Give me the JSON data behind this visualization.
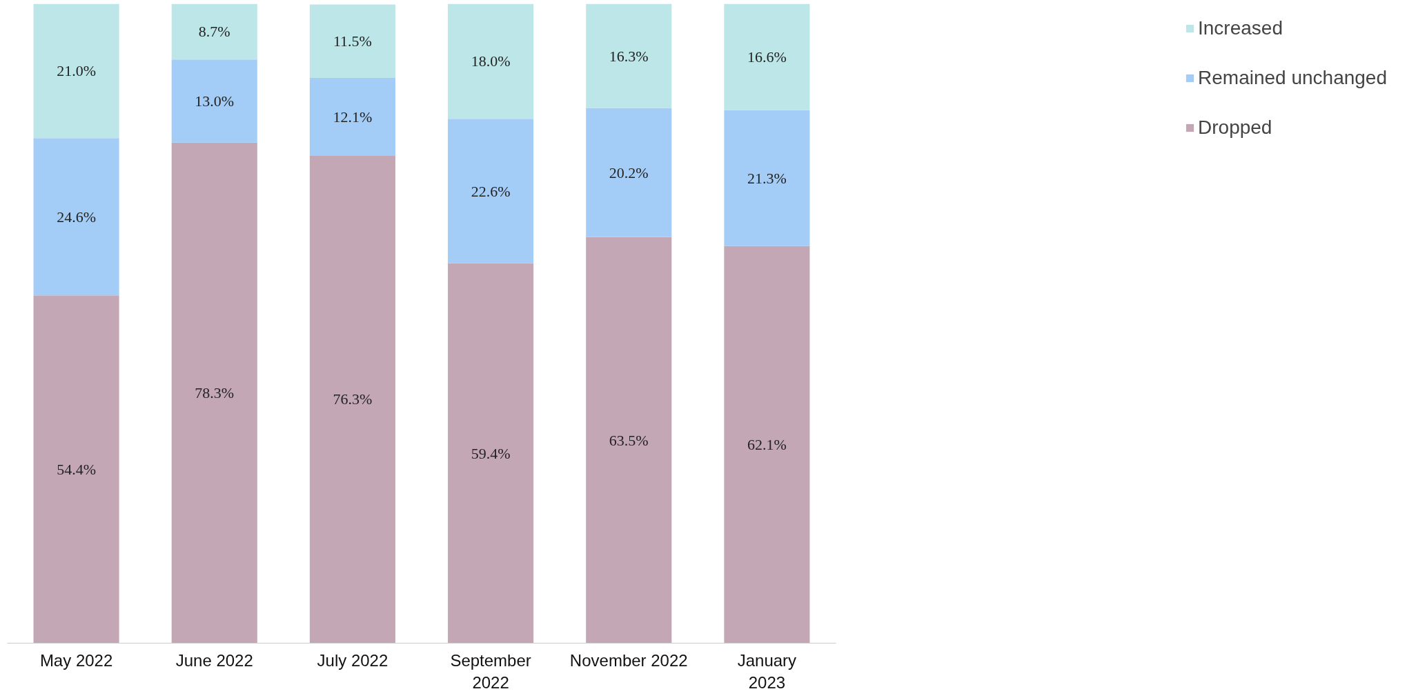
{
  "chart_data": {
    "type": "bar",
    "stacked": true,
    "categories": [
      "May 2022",
      "June 2022",
      "July 2022",
      "September\n2022",
      "November 2022",
      "January\n2023"
    ],
    "series": [
      {
        "name": "Dropped",
        "color": "#c4a7b4",
        "values": [
          54.4,
          78.3,
          76.3,
          59.4,
          63.5,
          62.1
        ],
        "value_labels": [
          "54.4%",
          "78.3%",
          "76.3%",
          "59.4%",
          "63.5%",
          "62.1%"
        ]
      },
      {
        "name": "Remained unchanged",
        "color": "#a3cdf7",
        "values": [
          24.6,
          13.0,
          12.1,
          22.6,
          20.2,
          21.3
        ],
        "value_labels": [
          "24.6%",
          "13.0%",
          "12.1%",
          "22.6%",
          "20.2%",
          "21.3%"
        ]
      },
      {
        "name": "Increased",
        "color": "#bce6e8",
        "values": [
          21.0,
          8.7,
          11.5,
          18.0,
          16.3,
          16.6
        ],
        "value_labels": [
          "21.0%",
          "8.7%",
          "11.5%",
          "18.0%",
          "16.3%",
          "16.6%"
        ]
      }
    ],
    "legend": "right",
    "grid": false
  }
}
